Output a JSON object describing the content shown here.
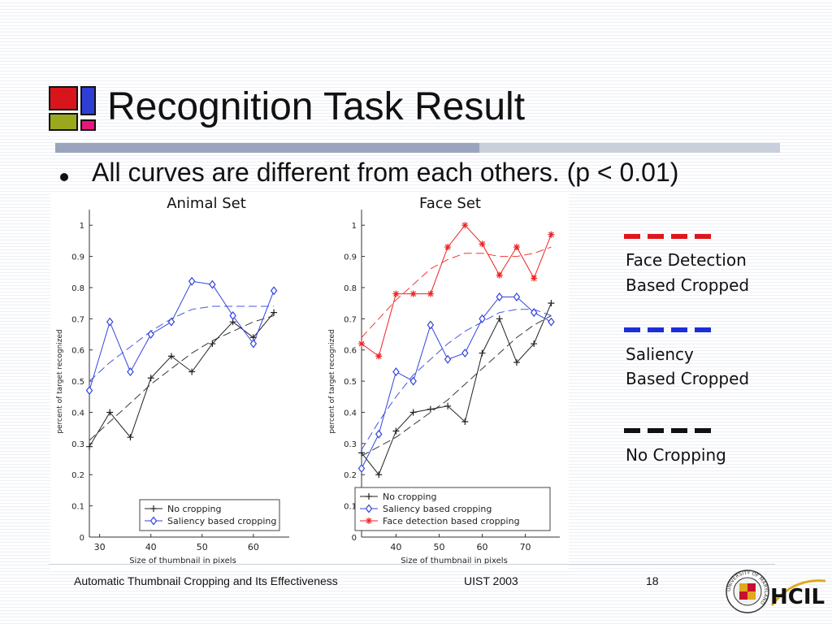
{
  "slide": {
    "title": "Recognition Task Result",
    "bullet": "All curves are different from each others. (p < 0.01)",
    "logo_colors": [
      "#d9151c",
      "#2f3fd6",
      "#9aa81e",
      "#e6167c"
    ]
  },
  "legend": {
    "items": [
      {
        "line1": "Face Detection",
        "line2": "Based Cropped",
        "color": "#e0151b"
      },
      {
        "line1": "Saliency",
        "line2": "Based Cropped",
        "color": "#1c2ed8"
      },
      {
        "line1": "No Cropping",
        "line2": "",
        "color": "#111111"
      }
    ]
  },
  "footer": {
    "left": "Automatic Thumbnail Cropping and Its Effectiveness",
    "center": "UIST 2003",
    "page": "18",
    "seal_text": "UNIVERSITY OF MARYLAND",
    "lab_logo_text": "HCIL"
  },
  "chart_data": [
    {
      "type": "line",
      "title": "Animal Set",
      "xlabel": "Size of thumbnail in pixels",
      "ylabel": "percent of target recognized",
      "xlim": [
        28,
        67
      ],
      "ylim": [
        0,
        1.05
      ],
      "xticks": [
        30,
        40,
        50,
        60
      ],
      "yticks": [
        0,
        0.1,
        0.2,
        0.3,
        0.4,
        0.5,
        0.6,
        0.7,
        0.8,
        0.9,
        1
      ],
      "legend_position": "bottom-right",
      "series": [
        {
          "name": "No cropping",
          "color": "#222222",
          "marker": "plus",
          "x": [
            28,
            32,
            36,
            40,
            44,
            48,
            52,
            56,
            60,
            64
          ],
          "y": [
            0.29,
            0.4,
            0.32,
            0.51,
            0.58,
            0.53,
            0.62,
            0.69,
            0.64,
            0.72
          ],
          "fit": [
            0.31,
            0.37,
            0.43,
            0.49,
            0.54,
            0.59,
            0.63,
            0.66,
            0.69,
            0.71
          ]
        },
        {
          "name": "Saliency based cropping",
          "color": "#3344dd",
          "marker": "diamond",
          "x": [
            28,
            32,
            36,
            40,
            44,
            48,
            52,
            56,
            60,
            64
          ],
          "y": [
            0.47,
            0.69,
            0.53,
            0.65,
            0.69,
            0.82,
            0.81,
            0.71,
            0.62,
            0.79
          ],
          "fit": [
            0.5,
            0.56,
            0.61,
            0.66,
            0.7,
            0.73,
            0.74,
            0.74,
            0.74,
            0.74
          ]
        }
      ]
    },
    {
      "type": "line",
      "title": "Face Set",
      "xlabel": "Size of thumbnail in pixels",
      "ylabel": "percent of target recognized",
      "xlim": [
        32,
        78
      ],
      "ylim": [
        0,
        1.05
      ],
      "xticks": [
        40,
        50,
        60,
        70
      ],
      "yticks": [
        0,
        0.1,
        0.2,
        0.3,
        0.4,
        0.5,
        0.6,
        0.7,
        0.8,
        0.9,
        1
      ],
      "legend_position": "bottom-right",
      "series": [
        {
          "name": "No cropping",
          "color": "#222222",
          "marker": "plus",
          "x": [
            32,
            36,
            40,
            44,
            48,
            52,
            56,
            60,
            64,
            68,
            72,
            76
          ],
          "y": [
            0.27,
            0.2,
            0.34,
            0.4,
            0.41,
            0.42,
            0.37,
            0.59,
            0.7,
            0.56,
            0.62,
            0.75
          ],
          "fit": [
            0.26,
            0.29,
            0.32,
            0.36,
            0.4,
            0.44,
            0.49,
            0.54,
            0.59,
            0.64,
            0.68,
            0.71
          ]
        },
        {
          "name": "Saliency based cropping",
          "color": "#3344dd",
          "marker": "diamond",
          "x": [
            32,
            36,
            40,
            44,
            48,
            52,
            56,
            60,
            64,
            68,
            72,
            76
          ],
          "y": [
            0.22,
            0.33,
            0.53,
            0.5,
            0.68,
            0.57,
            0.59,
            0.7,
            0.77,
            0.77,
            0.72,
            0.69
          ],
          "fit": [
            0.28,
            0.37,
            0.45,
            0.52,
            0.57,
            0.62,
            0.66,
            0.69,
            0.72,
            0.73,
            0.73,
            0.71
          ]
        },
        {
          "name": "Face detection based cropping",
          "color": "#ee2222",
          "marker": "star",
          "x": [
            32,
            36,
            40,
            44,
            48,
            52,
            56,
            60,
            64,
            68,
            72,
            76
          ],
          "y": [
            0.62,
            0.58,
            0.78,
            0.78,
            0.78,
            0.93,
            1.0,
            0.94,
            0.84,
            0.93,
            0.83,
            0.97
          ],
          "fit": [
            0.64,
            0.7,
            0.76,
            0.81,
            0.86,
            0.89,
            0.91,
            0.91,
            0.9,
            0.9,
            0.91,
            0.93
          ]
        }
      ]
    }
  ]
}
